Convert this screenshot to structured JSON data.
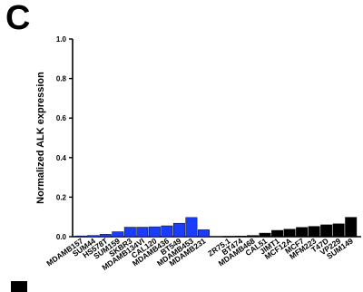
{
  "panel_label": "C",
  "colors": {
    "group_a": "#1a3cff",
    "group_b": "#000000",
    "axis": "#000000"
  },
  "chart_data": {
    "type": "bar",
    "title": "",
    "xlabel": "",
    "ylabel": "Normalized ALK expression",
    "ylim": [
      0,
      1.0
    ],
    "yticks": [
      "0.0",
      "0.2",
      "0.4",
      "0.6",
      "0.8",
      "1.0"
    ],
    "grid": false,
    "categories": [
      "MDAMB157",
      "SUM44",
      "HS578T",
      "SUM159",
      "SKBR3",
      "MDAMB134VI",
      "CAL120",
      "MDAMB436",
      "BT549",
      "MDAMB453",
      "MDAMB231",
      "ZR75.1",
      "BT474",
      "MDAMB468",
      "CAL51",
      "JIMT1",
      "MCF12A",
      "MCF7",
      "MFM223",
      "T47D",
      "VP229",
      "SUM149"
    ],
    "values": [
      0.004,
      0.006,
      0.012,
      0.025,
      0.048,
      0.048,
      0.05,
      0.055,
      0.068,
      0.097,
      0.035,
      0.002,
      0.003,
      0.006,
      0.018,
      0.032,
      0.038,
      0.047,
      0.052,
      0.06,
      0.065,
      0.098
    ],
    "groups": [
      "a",
      "a",
      "a",
      "a",
      "a",
      "a",
      "a",
      "a",
      "a",
      "a",
      "a",
      "b",
      "b",
      "b",
      "b",
      "b",
      "b",
      "b",
      "b",
      "b",
      "b",
      "b"
    ]
  }
}
